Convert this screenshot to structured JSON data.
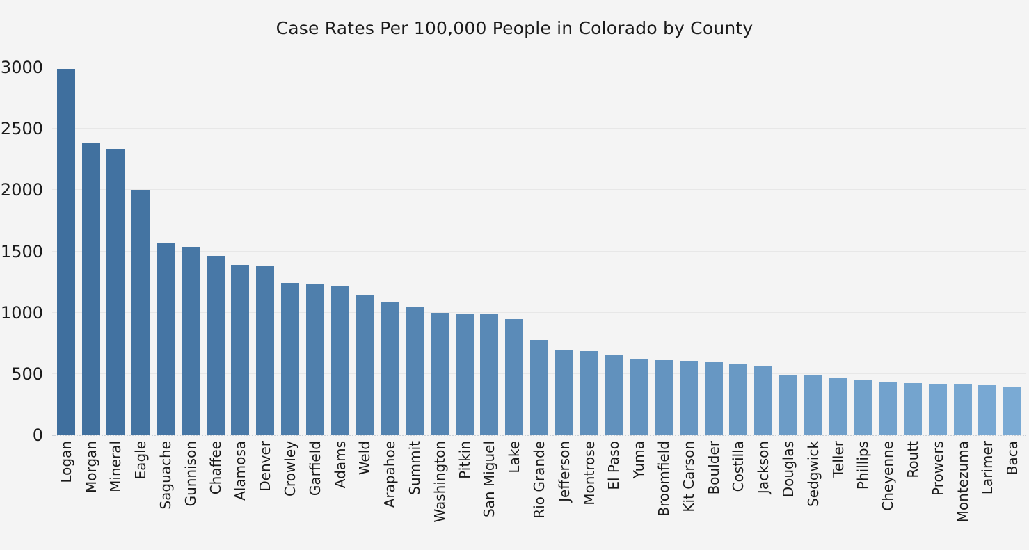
{
  "page": {
    "background": "#f4f4f4"
  },
  "chart_data": {
    "type": "bar",
    "title": "Case Rates Per 100,000 People in Colorado by County",
    "xlabel": "",
    "ylabel": "",
    "ylim": [
      0,
      3000
    ],
    "yticks": [
      0,
      500,
      1000,
      1500,
      2000,
      2500,
      3000
    ],
    "grid": "horizontal",
    "legend": "none",
    "categories": [
      "Logan",
      "Morgan",
      "Mineral",
      "Eagle",
      "Saguache",
      "Gunnison",
      "Chaffee",
      "Alamosa",
      "Denver",
      "Crowley",
      "Garfield",
      "Adams",
      "Weld",
      "Arapahoe",
      "Summit",
      "Washington",
      "Pitkin",
      "San Miguel",
      "Lake",
      "Rio Grande",
      "Jefferson",
      "Montrose",
      "El Paso",
      "Yuma",
      "Broomfield",
      "Kit Carson",
      "Boulder",
      "Costilla",
      "Jackson",
      "Douglas",
      "Sedgwick",
      "Teller",
      "Phillips",
      "Cheyenne",
      "Routt",
      "Prowers",
      "Montezuma",
      "Larimer",
      "Baca"
    ],
    "values": [
      2990,
      2390,
      2330,
      2000,
      1570,
      1535,
      1465,
      1390,
      1380,
      1240,
      1238,
      1220,
      1145,
      1090,
      1045,
      1000,
      995,
      985,
      945,
      775,
      695,
      685,
      655,
      625,
      612,
      608,
      600,
      580,
      570,
      490,
      487,
      470,
      450,
      438,
      428,
      420,
      418,
      408,
      390
    ],
    "colors": {
      "bar_gradient_start": "#3f6f9e",
      "bar_gradient_end": "#7aaad4",
      "background": "#f4f4f4",
      "gridline": "#e7e7e7",
      "axis_line": "#c9cfd6",
      "text": "#1a1a1a"
    }
  }
}
